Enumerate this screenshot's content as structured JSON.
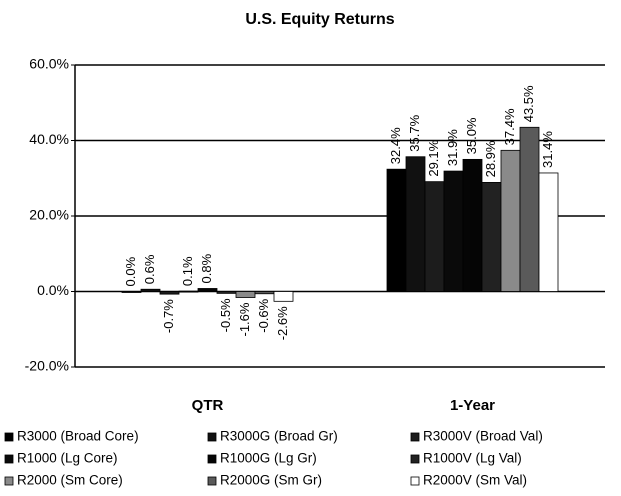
{
  "chart_data": {
    "type": "bar",
    "title": "U.S. Equity Returns",
    "categories": [
      "QTR",
      "1-Year"
    ],
    "ylim": [
      -20,
      60
    ],
    "yticks": [
      {
        "value": -20,
        "label": "-20.0%"
      },
      {
        "value": 0,
        "label": "0.0%"
      },
      {
        "value": 20,
        "label": "20.0%"
      },
      {
        "value": 40,
        "label": "40.0%"
      },
      {
        "value": 60,
        "label": "60.0%"
      }
    ],
    "grid": true,
    "series": [
      {
        "name": "R3000 (Broad Core)",
        "color": "#000000",
        "values": [
          0.0,
          32.4
        ],
        "value_labels": [
          "0.0%",
          "32.4%"
        ]
      },
      {
        "name": "R3000G (Broad Gr)",
        "color": "#111111",
        "values": [
          0.6,
          35.7
        ],
        "value_labels": [
          "0.6%",
          "35.7%"
        ]
      },
      {
        "name": "R3000V (Broad Val)",
        "color": "#1c1c1c",
        "values": [
          -0.7,
          29.1
        ],
        "value_labels": [
          "-0.7%",
          "29.1%"
        ]
      },
      {
        "name": "R1000 (Lg Core)",
        "color": "#0a0a0a",
        "values": [
          0.1,
          31.9
        ],
        "value_labels": [
          "0.1%",
          "31.9%"
        ]
      },
      {
        "name": "R1000G (Lg Gr)",
        "color": "#050505",
        "values": [
          0.8,
          35.0
        ],
        "value_labels": [
          "0.8%",
          "35.0%"
        ]
      },
      {
        "name": "R1000V (Lg Val)",
        "color": "#222222",
        "values": [
          -0.5,
          28.9
        ],
        "value_labels": [
          "-0.5%",
          "28.9%"
        ]
      },
      {
        "name": "R2000 (Sm Core)",
        "color": "#8a8a8a",
        "values": [
          -1.6,
          37.4
        ],
        "value_labels": [
          "-1.6%",
          "37.4%"
        ]
      },
      {
        "name": "R2000G (Sm Gr)",
        "color": "#5a5a5a",
        "values": [
          -0.6,
          43.5
        ],
        "value_labels": [
          "-0.6%",
          "43.5%"
        ]
      },
      {
        "name": "R2000V (Sm Val)",
        "color": "#ffffff",
        "values": [
          -2.6,
          31.4
        ],
        "value_labels": [
          "-2.6%",
          "31.4%"
        ]
      }
    ]
  }
}
